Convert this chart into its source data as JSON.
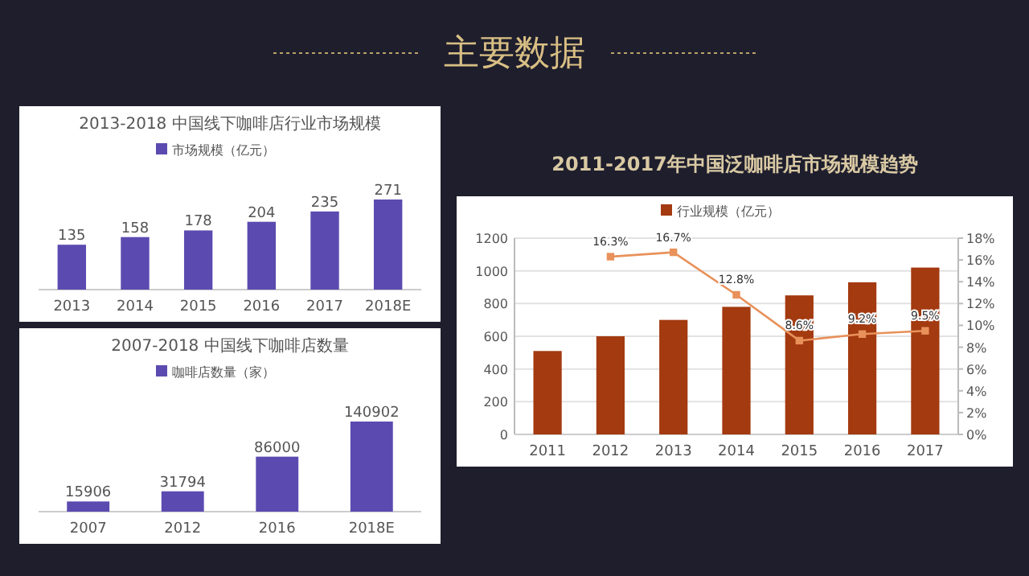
{
  "chart_data": [
    {
      "type": "other",
      "title": "主要数据"
    },
    {
      "type": "bar",
      "title": "2013-2018 中国线下咖啡店行业市场规模",
      "categories": [
        "2013",
        "2014",
        "2015",
        "2016",
        "2017",
        "2018E"
      ],
      "series": [
        {
          "name": "市场规模（亿元）",
          "color": "#5b4bb0",
          "values": [
            135,
            158,
            178,
            204,
            235,
            271
          ]
        }
      ],
      "data_labels": true,
      "legend": "top"
    },
    {
      "type": "bar",
      "title": "2007-2018 中国线下咖啡店数量",
      "categories": [
        "2007",
        "2012",
        "2016",
        "2018E"
      ],
      "series": [
        {
          "name": "咖啡店数量（家）",
          "color": "#5b4bb0",
          "values": [
            15906,
            31794,
            86000,
            140902
          ]
        }
      ],
      "data_labels": true,
      "legend": "top"
    },
    {
      "type": "bar",
      "title": "2011-2017年中国泛咖啡店市场规模趋势",
      "categories": [
        "2011",
        "2012",
        "2013",
        "2014",
        "2015",
        "2016",
        "2017"
      ],
      "series": [
        {
          "name": "行业规模（亿元）",
          "color": "#a33a10",
          "values": [
            510,
            600,
            700,
            780,
            850,
            930,
            1020
          ]
        },
        {
          "type": "line",
          "axis": "y2",
          "color": "#e8915a",
          "values": [
            null,
            16.3,
            16.7,
            12.8,
            8.6,
            9.2,
            9.5
          ],
          "value_labels": [
            null,
            "16.3%",
            "16.7%",
            "12.8%",
            "8.6%",
            "9.2%",
            "9.5%"
          ]
        }
      ],
      "ylim": [
        0,
        1200
      ],
      "yticks": [
        0,
        200,
        400,
        600,
        800,
        1000,
        1200
      ],
      "y2lim": [
        0,
        18
      ],
      "y2ticks": [
        {
          "value": 0,
          "label": "0%"
        },
        {
          "value": 2,
          "label": "2%"
        },
        {
          "value": 4,
          "label": "4%"
        },
        {
          "value": 6,
          "label": "6%"
        },
        {
          "value": 8,
          "label": "8%"
        },
        {
          "value": 10,
          "label": "10%"
        },
        {
          "value": 12,
          "label": "12%"
        },
        {
          "value": 14,
          "label": "14%"
        },
        {
          "value": 16,
          "label": "16%"
        },
        {
          "value": 18,
          "label": "18%"
        }
      ],
      "grid": "y",
      "marker": "square",
      "legend": "top"
    }
  ]
}
